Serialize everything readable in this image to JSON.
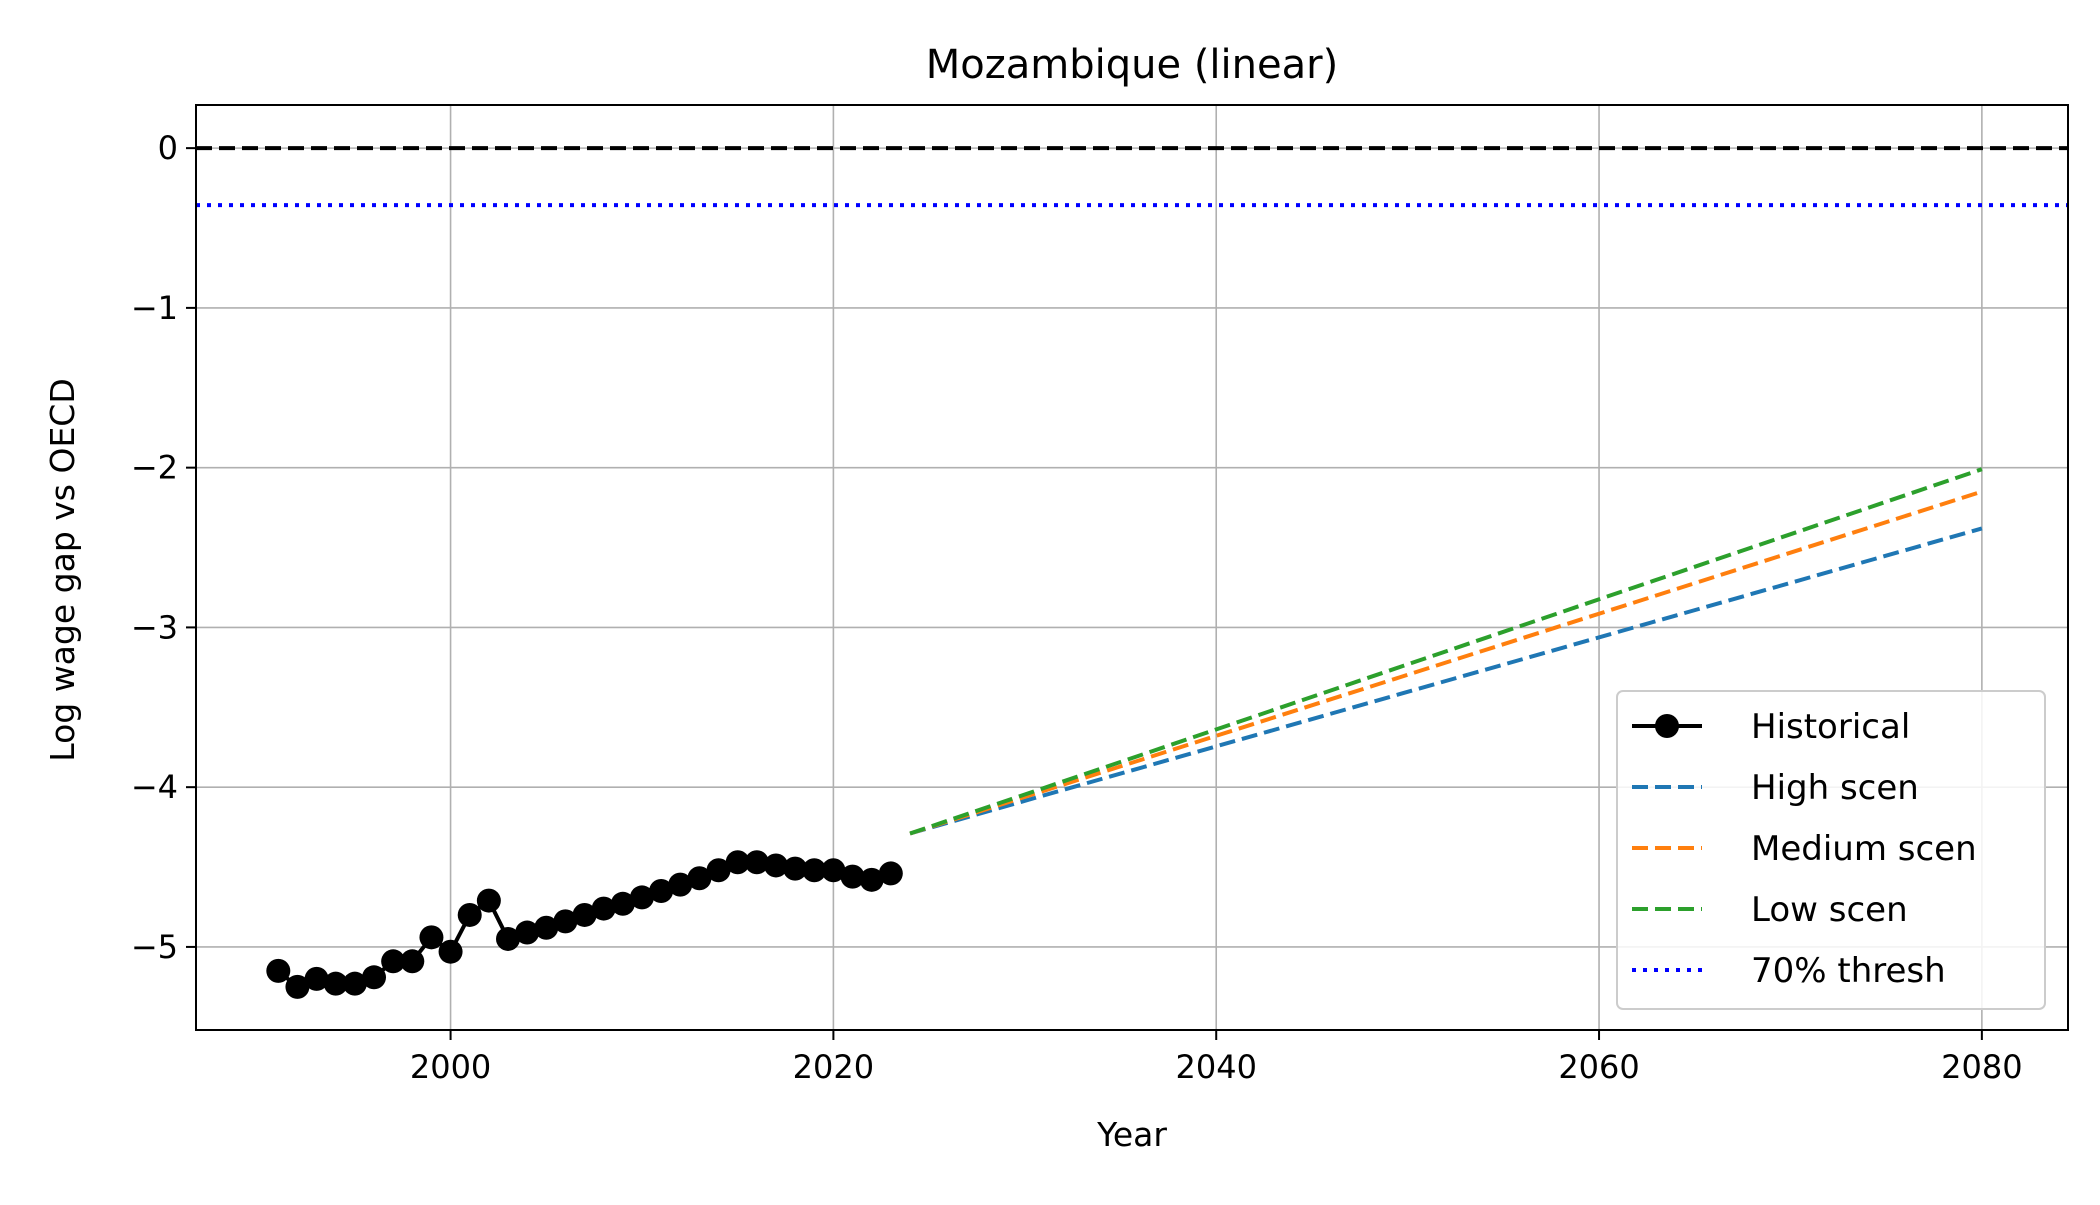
{
  "chart_data": {
    "type": "line",
    "title": "Mozambique (linear)",
    "xlabel": "Year",
    "ylabel": "Log wage gap vs OECD",
    "xlim": [
      1986.7,
      2084.5
    ],
    "ylim": [
      -5.52,
      0.27
    ],
    "x_ticks": [
      2000,
      2020,
      2040,
      2060,
      2080
    ],
    "x_tick_labels": [
      "2000",
      "2020",
      "2040",
      "2060",
      "2080"
    ],
    "y_ticks": [
      0,
      -1,
      -2,
      -3,
      -4,
      -5
    ],
    "y_tick_labels": [
      "0",
      "−1",
      "−2",
      "−3",
      "−4",
      "−5"
    ],
    "grid": true,
    "legend_position": "lower right",
    "reference_lines": [
      {
        "name": "zero",
        "y": 0,
        "color": "#000000",
        "style": "dashed"
      },
      {
        "name": "70% thresh",
        "y": -0.357,
        "color": "#0000ff",
        "style": "dotted"
      }
    ],
    "series": [
      {
        "name": "Historical",
        "color": "#000000",
        "style": "solid-marker",
        "x": [
          1991,
          1992,
          1993,
          1994,
          1995,
          1996,
          1997,
          1998,
          1999,
          2000,
          2001,
          2002,
          2003,
          2004,
          2005,
          2006,
          2007,
          2008,
          2009,
          2010,
          2011,
          2012,
          2013,
          2014,
          2015,
          2016,
          2017,
          2018,
          2019,
          2020,
          2021,
          2022,
          2023
        ],
        "y": [
          -5.15,
          -5.25,
          -5.2,
          -5.23,
          -5.23,
          -5.19,
          -5.09,
          -5.09,
          -4.94,
          -5.03,
          -4.8,
          -4.71,
          -4.95,
          -4.91,
          -4.88,
          -4.84,
          -4.8,
          -4.76,
          -4.73,
          -4.69,
          -4.65,
          -4.61,
          -4.57,
          -4.52,
          -4.47,
          -4.47,
          -4.49,
          -4.51,
          -4.52,
          -4.52,
          -4.56,
          -4.58,
          -4.54
        ]
      },
      {
        "name": "High scen",
        "color": "#1f77b4",
        "style": "dashed",
        "x": [
          2024,
          2080
        ],
        "y": [
          -4.29,
          -2.38
        ]
      },
      {
        "name": "Medium scen",
        "color": "#ff7f0e",
        "style": "dashed",
        "x": [
          2024,
          2080
        ],
        "y": [
          -4.29,
          -2.15
        ]
      },
      {
        "name": "Low scen",
        "color": "#2ca02c",
        "style": "dashed",
        "x": [
          2024,
          2080
        ],
        "y": [
          -4.29,
          -2.01
        ]
      }
    ],
    "legend": [
      "Historical",
      "High scen",
      "Medium scen",
      "Low scen",
      "70% thresh"
    ]
  }
}
